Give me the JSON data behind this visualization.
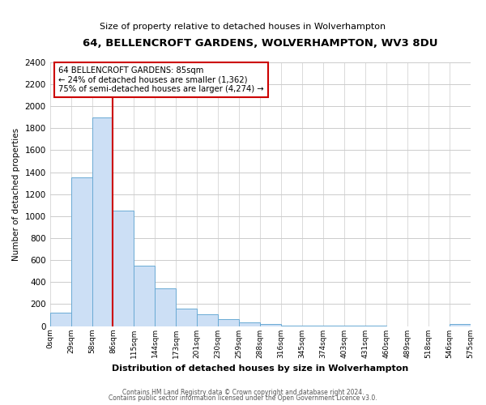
{
  "title": "64, BELLENCROFT GARDENS, WOLVERHAMPTON, WV3 8DU",
  "subtitle": "Size of property relative to detached houses in Wolverhampton",
  "xlabel": "Distribution of detached houses by size in Wolverhampton",
  "ylabel": "Number of detached properties",
  "bar_values": [
    125,
    1350,
    1900,
    1050,
    550,
    340,
    160,
    110,
    60,
    30,
    20,
    5,
    3,
    2,
    1,
    1,
    0,
    0,
    0,
    15
  ],
  "bin_labels": [
    "0sqm",
    "29sqm",
    "58sqm",
    "86sqm",
    "115sqm",
    "144sqm",
    "173sqm",
    "201sqm",
    "230sqm",
    "259sqm",
    "288sqm",
    "316sqm",
    "345sqm",
    "374sqm",
    "403sqm",
    "431sqm",
    "460sqm",
    "489sqm",
    "518sqm",
    "546sqm",
    "575sqm"
  ],
  "bar_color": "#ccdff5",
  "bar_edge_color": "#6aaad4",
  "property_line_label": "64 BELLENCROFT GARDENS: 85sqm",
  "annotation_line1": "← 24% of detached houses are smaller (1,362)",
  "annotation_line2": "75% of semi-detached houses are larger (4,274) →",
  "annotation_box_color": "#ffffff",
  "annotation_box_edge_color": "#cc0000",
  "vline_color": "#cc0000",
  "vline_x_bin": 3,
  "ylim": [
    0,
    2400
  ],
  "yticks": [
    0,
    200,
    400,
    600,
    800,
    1000,
    1200,
    1400,
    1600,
    1800,
    2000,
    2200,
    2400
  ],
  "footer1": "Contains HM Land Registry data © Crown copyright and database right 2024.",
  "footer2": "Contains public sector information licensed under the Open Government Licence v3.0.",
  "background_color": "#ffffff",
  "grid_color": "#cccccc"
}
